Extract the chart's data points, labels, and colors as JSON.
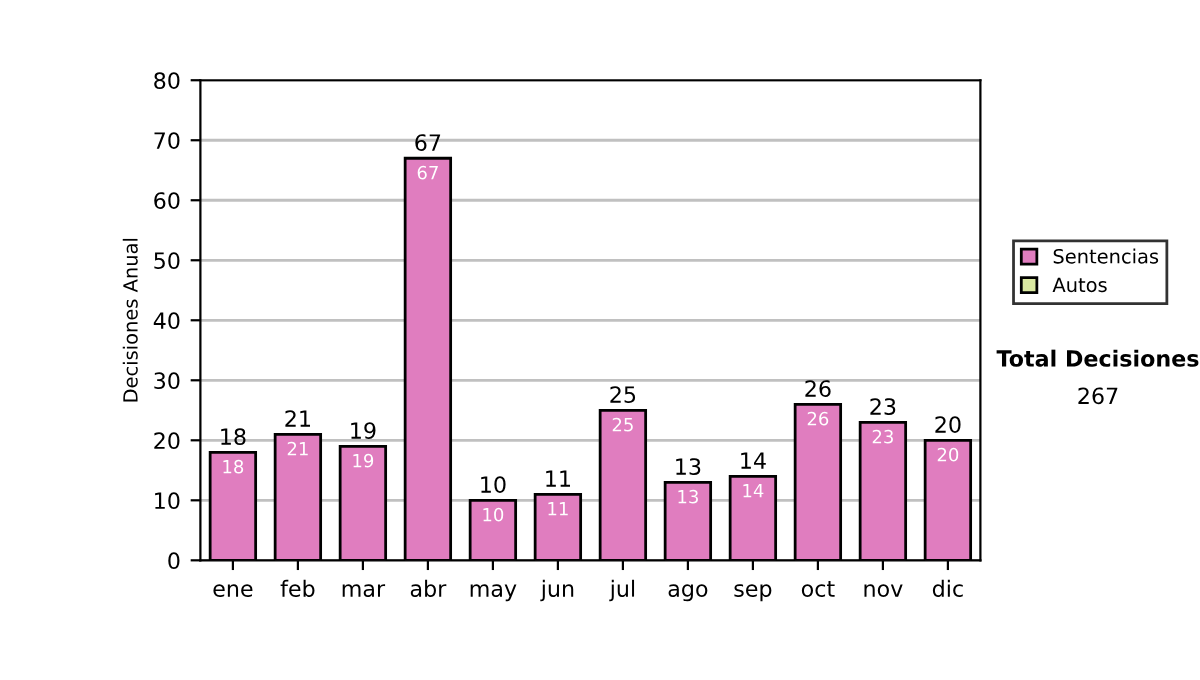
{
  "chart_data": {
    "type": "bar",
    "ylabel": "Decisiones Anual",
    "stacked": true,
    "categories": [
      "ene",
      "feb",
      "mar",
      "abr",
      "may",
      "jun",
      "jul",
      "ago",
      "sep",
      "oct",
      "nov",
      "dic"
    ],
    "series": [
      {
        "name": "Sentencias",
        "color": "#e07dbf",
        "values": [
          18,
          21,
          19,
          67,
          10,
          11,
          25,
          13,
          14,
          26,
          23,
          20
        ],
        "value_labels": [
          "18",
          "21",
          "19",
          "67",
          "10",
          "11",
          "25",
          "13",
          "14",
          "26",
          "23",
          "20"
        ]
      },
      {
        "name": "Autos",
        "color": "#d9e8a0",
        "values": [
          0,
          0,
          0,
          0,
          0,
          0,
          0,
          0,
          0,
          0,
          0,
          0
        ]
      }
    ],
    "totals": [
      "18",
      "21",
      "19",
      "67",
      "10",
      "11",
      "25",
      "13",
      "14",
      "26",
      "23",
      "20"
    ],
    "ylim": [
      0,
      80
    ],
    "yticks": [
      0,
      10,
      20,
      30,
      40,
      50,
      60,
      70,
      80
    ],
    "grid": "y",
    "legend": "right",
    "annotations": [
      "Total Decisiones",
      "267"
    ]
  }
}
